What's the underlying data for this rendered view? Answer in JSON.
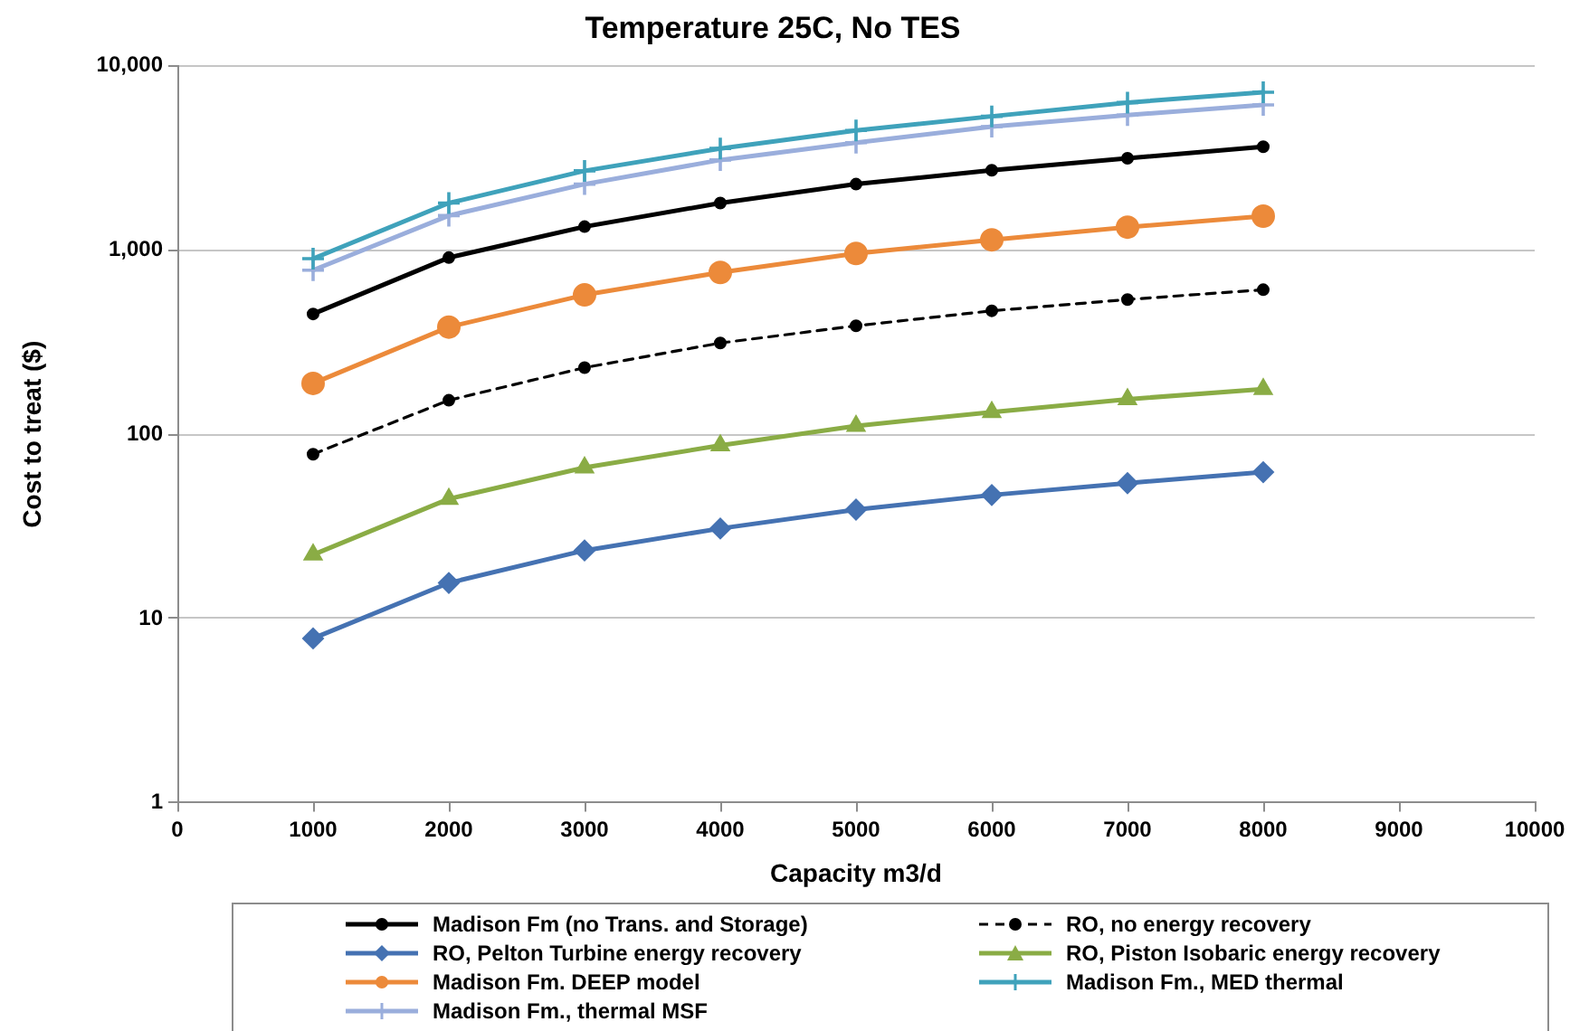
{
  "chart_data": {
    "type": "line",
    "title": "Temperature 25C, No TES",
    "xlabel": "Capacity m3/d",
    "ylabel": "Cost to treat ($)",
    "x": [
      1000,
      2000,
      3000,
      4000,
      5000,
      6000,
      7000,
      8000
    ],
    "xlim": [
      0,
      10000
    ],
    "xticks": [
      0,
      1000,
      2000,
      3000,
      4000,
      5000,
      6000,
      7000,
      8000,
      9000,
      10000
    ],
    "log": "y",
    "ylim": [
      1,
      10000
    ],
    "yticks": [
      1,
      10,
      100,
      {
        "value": 1000,
        "label": "1,000"
      },
      {
        "value": 10000,
        "label": "10,000"
      }
    ],
    "grid": "y",
    "legend": "bottom",
    "series": [
      {
        "name": "Madison Fm (no Trans. and Storage)",
        "color": "#000000",
        "marker": "circle",
        "values": [
          450,
          910,
          1340,
          1800,
          2280,
          2710,
          3150,
          3640
        ]
      },
      {
        "name": "RO, no energy recovery",
        "color": "#000000",
        "marker": "circle",
        "line_style": "dashed",
        "values": [
          78,
          153,
          230,
          313,
          388,
          468,
          539,
          609
        ]
      },
      {
        "name": "RO, Pelton Turbine energy recovery",
        "color": "#4572b2",
        "marker": "diamond",
        "values": [
          7.8,
          15.6,
          23.4,
          30.8,
          39,
          46.8,
          54.3,
          62.3
        ]
      },
      {
        "name": "RO, Piston Isobaric energy recovery",
        "color": "#8aac45",
        "marker": "triangle",
        "values": [
          22.2,
          44.6,
          66,
          87,
          111,
          132,
          155,
          176
        ]
      },
      {
        "name": "Madison Fm. DEEP model",
        "color": "#ec8a3a",
        "marker": "circle",
        "values": [
          189,
          382,
          571,
          756,
          958,
          1137,
          1332,
          1528
        ]
      },
      {
        "name": "Madison Fm., MED thermal",
        "color": "#3fa2bb",
        "marker": "cross",
        "values": [
          898,
          1799,
          2692,
          3560,
          4460,
          5320,
          6320,
          7190
        ]
      },
      {
        "name": "Madison Fm., thermal MSF",
        "color": "#9aaedc",
        "marker": "cross",
        "values": [
          778,
          1538,
          2280,
          3083,
          3826,
          4680,
          5400,
          6140
        ]
      }
    ]
  }
}
